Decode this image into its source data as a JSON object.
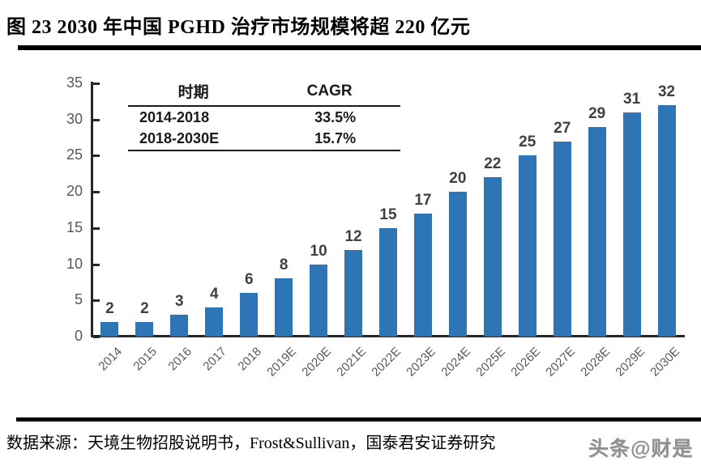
{
  "figure": {
    "title": "图 23 2030 年中国 PGHD 治疗市场规模将超 220 亿元",
    "source": "数据来源：天境生物招股说明书，Frost&Sullivan，国泰君安证券研究",
    "watermark": "头条@财是"
  },
  "chart_data": {
    "type": "bar",
    "title": "",
    "xlabel": "",
    "ylabel": "",
    "categories": [
      "2014",
      "2015",
      "2016",
      "2017",
      "2018",
      "2019E",
      "2020E",
      "2021E",
      "2022E",
      "2023E",
      "2024E",
      "2025E",
      "2026E",
      "2027E",
      "2028E",
      "2029E",
      "2030E"
    ],
    "values": [
      2,
      2,
      3,
      4,
      6,
      8,
      10,
      12,
      15,
      17,
      20,
      22,
      25,
      27,
      29,
      31,
      32
    ],
    "ylim": [
      0,
      35
    ],
    "yticks": [
      0,
      5,
      10,
      15,
      20,
      25,
      30,
      35
    ],
    "grid": false,
    "legend": "none",
    "bar_color": "#2E75B6",
    "value_label_color": "#404040",
    "axis_label_color": "#595959",
    "inset_table": {
      "headers": [
        "时期",
        "CAGR"
      ],
      "rows": [
        [
          "2014-2018",
          "33.5%"
        ],
        [
          "2018-2030E",
          "15.7%"
        ]
      ]
    }
  }
}
